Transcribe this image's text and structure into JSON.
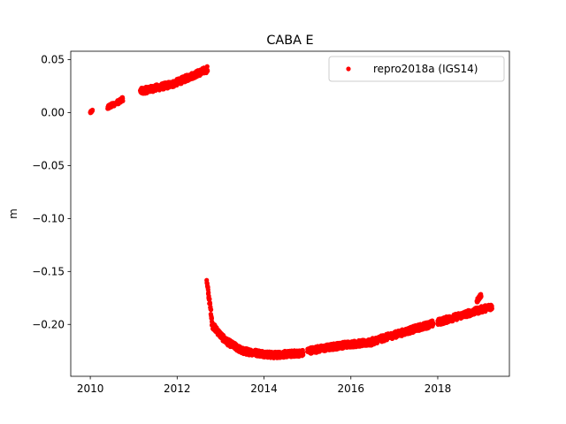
{
  "chart_data": {
    "type": "scatter",
    "title": "CABA E",
    "xlabel": "",
    "ylabel": "m",
    "xlim": [
      2009.55,
      2019.65
    ],
    "ylim": [
      -0.249,
      0.058
    ],
    "xticks": [
      2010,
      2012,
      2014,
      2016,
      2018
    ],
    "yticks": [
      0.05,
      0.0,
      -0.05,
      -0.1,
      -0.15,
      -0.2
    ],
    "ytick_labels": [
      "0.05",
      "0.00",
      "−0.05",
      "−0.10",
      "−0.15",
      "−0.20"
    ],
    "grid": false,
    "legend": {
      "position": "top-right"
    },
    "series": [
      {
        "name": "repro2018a (IGS14)",
        "color": "#ff0000",
        "marker": "circle",
        "segments": [
          {
            "x0": 2010.0,
            "x1": 2010.05,
            "y0": 0.0,
            "y1": 0.002,
            "noise": 0.001,
            "spike": 0
          },
          {
            "x0": 2010.4,
            "x1": 2010.55,
            "y0": 0.005,
            "y1": 0.008,
            "noise": 0.002,
            "spike": 0
          },
          {
            "x0": 2010.6,
            "x1": 2010.75,
            "y0": 0.009,
            "y1": 0.013,
            "noise": 0.002,
            "spike": 0
          },
          {
            "x0": 2011.15,
            "x1": 2011.9,
            "y0": 0.02,
            "y1": 0.027,
            "noise": 0.003,
            "spike": 0
          },
          {
            "x0": 2011.9,
            "x1": 2012.7,
            "y0": 0.027,
            "y1": 0.041,
            "noise": 0.003,
            "spike": 0
          },
          {
            "x0": 2012.68,
            "x1": 2012.7,
            "y0": -0.158,
            "y1": -0.165,
            "noise": 0.002,
            "spike": 0
          },
          {
            "x0": 2012.7,
            "x1": 2012.8,
            "y0": -0.165,
            "y1": -0.195,
            "noise": 0.003,
            "spike": 0
          },
          {
            "x0": 2012.8,
            "x1": 2013.1,
            "y0": -0.2,
            "y1": -0.215,
            "noise": 0.003,
            "spike": 0
          },
          {
            "x0": 2013.1,
            "x1": 2013.5,
            "y0": -0.215,
            "y1": -0.225,
            "noise": 0.003,
            "spike": 0
          },
          {
            "x0": 2013.5,
            "x1": 2014.2,
            "y0": -0.225,
            "y1": -0.229,
            "noise": 0.003,
            "spike": 0
          },
          {
            "x0": 2014.2,
            "x1": 2014.9,
            "y0": -0.229,
            "y1": -0.227,
            "noise": 0.003,
            "spike": 0
          },
          {
            "x0": 2015.0,
            "x1": 2015.9,
            "y0": -0.225,
            "y1": -0.219,
            "noise": 0.003,
            "spike": 0
          },
          {
            "x0": 2015.9,
            "x1": 2016.5,
            "y0": -0.219,
            "y1": -0.217,
            "noise": 0.003,
            "spike": 0
          },
          {
            "x0": 2016.5,
            "x1": 2017.9,
            "y0": -0.216,
            "y1": -0.199,
            "noise": 0.003,
            "spike": 0
          },
          {
            "x0": 2018.0,
            "x1": 2019.25,
            "y0": -0.198,
            "y1": -0.183,
            "noise": 0.003,
            "spike": 0
          },
          {
            "x0": 2018.9,
            "x1": 2019.0,
            "y0": -0.178,
            "y1": -0.172,
            "noise": 0.002,
            "spike": 0
          }
        ]
      }
    ]
  }
}
